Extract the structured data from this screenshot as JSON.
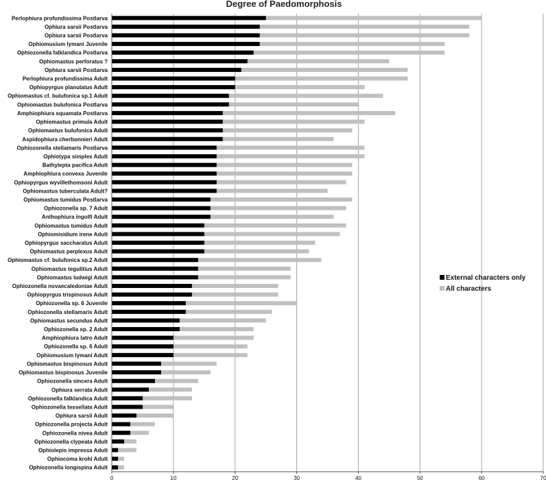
{
  "chart_data": {
    "type": "bar",
    "orientation": "horizontal",
    "stacking": "overlay",
    "title": "Degree of Paedomorphosis",
    "xlabel": "",
    "ylabel": "",
    "xlim": [
      0,
      70
    ],
    "xticks": [
      0,
      10,
      20,
      30,
      40,
      50,
      60,
      70
    ],
    "grid": "vertical major gridlines",
    "legend_position": "right",
    "colors": {
      "external": "#000000",
      "all": "#c0c0c0",
      "grid": "#a6a6a6"
    },
    "categories": [
      "Perlophiura profundissima Postlarva",
      "Ophiura sarsii Postlarva",
      "Ophiura sarsii Postlarva",
      "Ophiomusium lymani Juvenile",
      "Ophiozonella falklandica Postlarva",
      "Ophiomastus perforatus ?",
      "Ophiura sarsii Postlarva",
      "Perlophiura profundissima Adult",
      "Ophiopyrgus planulatus Adult",
      "Ophiomastus cf. bulufonica sp.1 Adult",
      "Ophiomastus bulufonica Postlarva",
      "Amphiophiura squamata Postlarva",
      "Ophiomastus primula Adult",
      "Ophiomastus bulufonica Adult",
      "Aspidophiura cherbonnieri Adult",
      "Ophiozonella stellamaris Postlarva",
      "Ophiotypa simplex Adult",
      "Bathylepta pacifica Adult",
      "Amphiophiura convexa Juvenile",
      "Ophiopyrgus wyvillethomsoni Adult",
      "Ophiomastus tuberculata Adult?",
      "Ophiomastus tumidus Postlarva",
      "Ophiozonella sp. 7 Adult",
      "Anthophiura ingolfi Adult",
      "Ophiomastus tumidus Adult",
      "Ophiomisidium irene Adult",
      "Ophiopyrgus saccharatus Adult",
      "Ophiomastus perplexus Adult",
      "Ophiomastus cf. bulufonica sp.2 Adult",
      "Ophiomastus tegulitius Adult",
      "Ophiomastus ludwigi Adult",
      "Ophiozonella novaecaledoniae Adult",
      "Ophiopyrgus trispinosus Adult",
      "Ophiozonella sp. 6 Juvenile",
      "Ophiozonella stellamaris Adult",
      "Ophiomastus secundus Adult",
      "Ophiozonella sp. 2 Adult",
      "Amphiophiura latro Adult",
      "Ophiozonella sp. 6 Adult",
      "Ophiomusium lymani Adult",
      "Ophiomastus bispinosus Adult",
      "Ophiomastus bispinosus Juvenile",
      "Ophiozonella sincera Adult",
      "Ophiura serrata Adult",
      "Ophiozonella falklandica Adult",
      "Ophiozonella tessellata Adult",
      "Ophiura sarsii Adult",
      "Ophiozonella projecta Adult",
      "Ophiozonella nivea Adult",
      "Ophiozonella clypeata Adult",
      "Ophiolepis impressa Adult",
      "Ophiocoma krohi Adult",
      "Ophiozonella longispina Adult"
    ],
    "series": [
      {
        "name": "External characters only",
        "color": "#000000",
        "values": [
          25,
          24,
          24,
          24,
          23,
          22,
          21,
          20,
          20,
          19,
          19,
          18,
          18,
          18,
          18,
          17,
          17,
          17,
          17,
          17,
          17,
          16,
          16,
          16,
          15,
          15,
          15,
          15,
          14,
          14,
          14,
          13,
          13,
          12,
          12,
          11,
          11,
          10,
          10,
          10,
          8,
          8,
          7,
          6,
          5,
          5,
          4,
          3,
          3,
          2,
          1,
          1,
          1
        ]
      },
      {
        "name": "All characters",
        "color": "#c0c0c0",
        "values": [
          60,
          58,
          58,
          54,
          54,
          45,
          48,
          48,
          41,
          44,
          40,
          46,
          41,
          39,
          36,
          41,
          41,
          39,
          39,
          38,
          35,
          39,
          38,
          36,
          38,
          37,
          33,
          32,
          34,
          29,
          29,
          27,
          27,
          30,
          26,
          25,
          23,
          23,
          22,
          22,
          17,
          16,
          14,
          13,
          13,
          10,
          10,
          7,
          6,
          4,
          4,
          2,
          2
        ]
      }
    ]
  }
}
